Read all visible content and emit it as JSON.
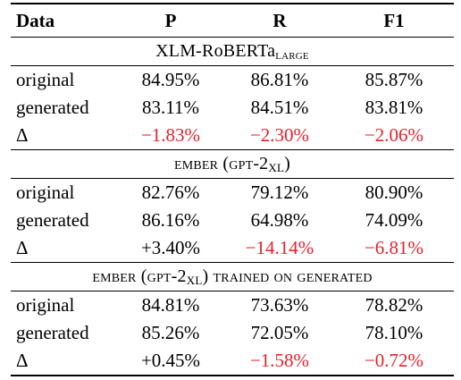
{
  "table": {
    "headers": [
      "Data",
      "P",
      "R",
      "F1"
    ],
    "sections": [
      {
        "title_main": "XLM-RoBERTa",
        "title_sub": "LARGE",
        "title_rest": "",
        "rows": [
          {
            "label": "original",
            "p": "84.95%",
            "r": "86.81%",
            "f1": "85.87%"
          },
          {
            "label": "generated",
            "p": "83.11%",
            "r": "84.51%",
            "f1": "83.81%"
          },
          {
            "label": "Δ",
            "p": "−1.83%",
            "r": "−2.30%",
            "f1": "−2.06%"
          }
        ]
      },
      {
        "title_main": "EMBER (GPT-2",
        "title_sub": "XL",
        "title_rest": ")",
        "rows": [
          {
            "label": "original",
            "p": "82.76%",
            "r": "79.12%",
            "f1": "80.90%"
          },
          {
            "label": "generated",
            "p": "86.16%",
            "r": "64.98%",
            "f1": "74.09%"
          },
          {
            "label": "Δ",
            "p": "+3.40%",
            "r": "−14.14%",
            "f1": "−6.81%"
          }
        ]
      },
      {
        "title_main": "EMBER (GPT-2",
        "title_sub": "XL",
        "title_rest": ") TRAINED ON GENERATED",
        "rows": [
          {
            "label": "original",
            "p": "84.81%",
            "r": "73.63%",
            "f1": "78.82%"
          },
          {
            "label": "generated",
            "p": "85.26%",
            "r": "72.05%",
            "f1": "78.10%"
          },
          {
            "label": "Δ",
            "p": "+0.45%",
            "r": "−1.58%",
            "f1": "−0.72%"
          }
        ]
      }
    ],
    "colors": {
      "text": "#000000",
      "negative": "#e8202a"
    }
  }
}
